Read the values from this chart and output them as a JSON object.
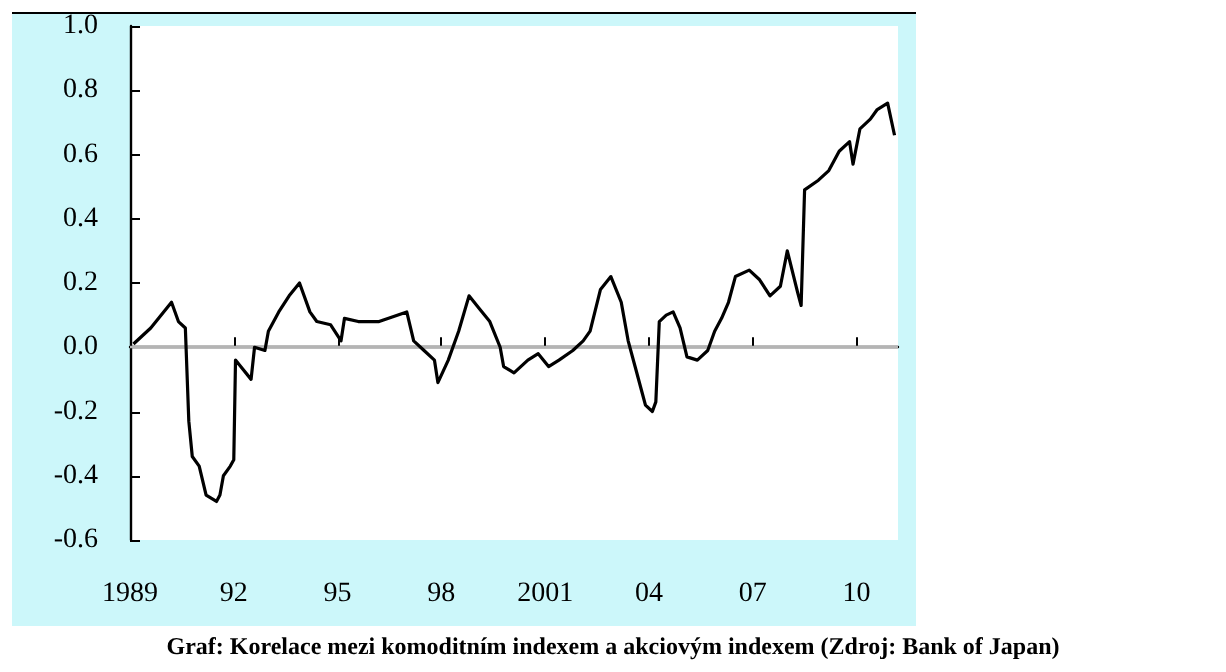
{
  "chart_data": {
    "type": "line",
    "x": [
      1989.1,
      1989.6,
      1990.2,
      1990.4,
      1990.6,
      1990.7,
      1990.8,
      1991.0,
      1991.2,
      1991.5,
      1991.6,
      1991.7,
      1991.9,
      1992.0,
      1992.05,
      1992.2,
      1992.5,
      1992.6,
      1992.9,
      1993.0,
      1993.3,
      1993.6,
      1993.9,
      1994.2,
      1994.4,
      1994.8,
      1995.1,
      1995.2,
      1995.6,
      1996.2,
      1997.0,
      1997.2,
      1997.5,
      1997.8,
      1997.9,
      1998.2,
      1998.5,
      1998.8,
      1999.1,
      1999.4,
      1999.7,
      1999.8,
      2000.1,
      2000.5,
      2000.8,
      2001.1,
      2001.4,
      2001.8,
      2002.1,
      2002.3,
      2002.6,
      2002.9,
      2003.2,
      2003.4,
      2003.6,
      2003.8,
      2003.9,
      2004.1,
      2004.2,
      2004.3,
      2004.5,
      2004.7,
      2004.9,
      2005.1,
      2005.4,
      2005.7,
      2005.9,
      2006.1,
      2006.3,
      2006.5,
      2006.9,
      2007.2,
      2007.5,
      2007.8,
      2008.0,
      2008.3,
      2008.4,
      2008.5,
      2008.9,
      2009.2,
      2009.5,
      2009.8,
      2009.9,
      2010.1,
      2010.4,
      2010.6,
      2010.9,
      2011.1
    ],
    "series": [
      {
        "color": "#000000",
        "values": [
          0.01,
          0.06,
          0.14,
          0.08,
          0.06,
          -0.23,
          -0.34,
          -0.37,
          -0.46,
          -0.48,
          -0.46,
          -0.4,
          -0.37,
          -0.35,
          -0.04,
          -0.06,
          -0.1,
          0.0,
          -0.01,
          0.05,
          0.11,
          0.16,
          0.2,
          0.11,
          0.08,
          0.07,
          0.02,
          0.09,
          0.08,
          0.08,
          0.11,
          0.02,
          -0.01,
          -0.04,
          -0.11,
          -0.04,
          0.05,
          0.16,
          0.12,
          0.08,
          0.0,
          -0.06,
          -0.08,
          -0.04,
          -0.02,
          -0.06,
          -0.04,
          -0.01,
          0.02,
          0.05,
          0.18,
          0.22,
          0.14,
          0.02,
          -0.06,
          -0.14,
          -0.18,
          -0.2,
          -0.17,
          0.08,
          0.1,
          0.11,
          0.06,
          -0.03,
          -0.04,
          -0.01,
          0.05,
          0.09,
          0.14,
          0.22,
          0.24,
          0.21,
          0.16,
          0.19,
          0.3,
          0.17,
          0.13,
          0.49,
          0.52,
          0.55,
          0.61,
          0.64,
          0.57,
          0.68,
          0.71,
          0.74,
          0.76,
          0.66
        ]
      }
    ],
    "xlim": [
      1989,
      2011.2
    ],
    "xticks": [
      1989,
      {
        "value": 1992,
        "label": "92"
      },
      {
        "value": 1995,
        "label": "95"
      },
      {
        "value": 1998,
        "label": "98"
      },
      2001,
      {
        "value": 2004,
        "label": "04"
      },
      {
        "value": 2007,
        "label": "07"
      },
      {
        "value": 2010,
        "label": "10"
      }
    ],
    "ylim": [
      -0.6,
      1.0
    ],
    "yticks": [
      {
        "value": -0.6,
        "label": "-0.6"
      },
      {
        "value": -0.4,
        "label": "-0.4"
      },
      {
        "value": -0.2,
        "label": "-0.2"
      },
      {
        "value": 0,
        "label": "0.0"
      },
      {
        "value": 0.2,
        "label": "0.2"
      },
      {
        "value": 0.4,
        "label": "0.4"
      },
      {
        "value": 0.6,
        "label": "0.6"
      },
      {
        "value": 0.8,
        "label": "0.8"
      },
      {
        "value": 1.0,
        "label": "1.0"
      }
    ],
    "ref_lines": [
      {
        "axis": "y",
        "value": 0,
        "color": "#b4b4b4"
      }
    ],
    "annotations": [
      "Graf: Korelace mezi komoditním indexem a akciovým indexem (Zdroj: Bank of Japan)"
    ],
    "grid": false,
    "marker": "none",
    "line_style": "solid"
  }
}
